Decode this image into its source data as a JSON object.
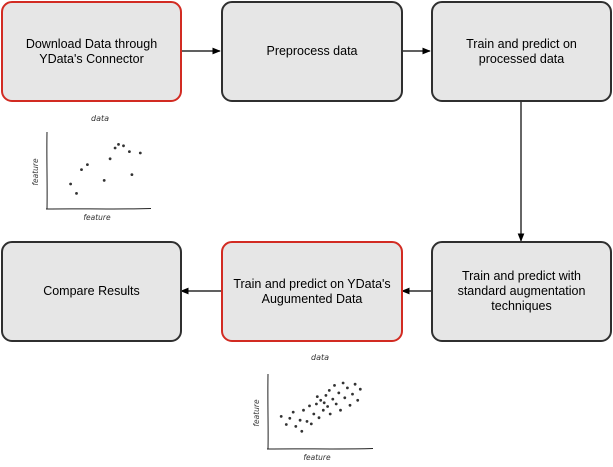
{
  "steps": {
    "download": "Download Data through\nYData's Connector",
    "preprocess": "Preprocess data",
    "train_processed": "Train and predict on\nprocessed data",
    "train_standard": "Train and predict with\nstandard augmentation\ntechniques",
    "train_ydata": "Train and predict on YData's\nAugumented Data",
    "compare": "Compare Results"
  },
  "colors": {
    "box_fill": "#e6e6e6",
    "box_border": "#2f2f2f",
    "highlight_border": "#d22b22"
  },
  "plot_original": {
    "title": "data",
    "xlabel": "feature",
    "ylabel": "feature",
    "points": [
      [
        1.5,
        2.5
      ],
      [
        2.2,
        1.2
      ],
      [
        2.8,
        4.5
      ],
      [
        3.5,
        5.2
      ],
      [
        5.5,
        3.0
      ],
      [
        6.2,
        6.0
      ],
      [
        6.8,
        7.5
      ],
      [
        7.2,
        8.0
      ],
      [
        7.8,
        7.8
      ],
      [
        8.5,
        7.0
      ],
      [
        8.8,
        3.8
      ],
      [
        9.8,
        6.8
      ]
    ]
  },
  "plot_augmented": {
    "title": "data",
    "xlabel": "feature",
    "ylabel": "feature",
    "points": [
      [
        0.6,
        3.8
      ],
      [
        1.2,
        2.5
      ],
      [
        1.6,
        3.5
      ],
      [
        2.0,
        4.5
      ],
      [
        2.3,
        2.2
      ],
      [
        2.8,
        3.2
      ],
      [
        3.2,
        4.8
      ],
      [
        3.6,
        3.0
      ],
      [
        3.9,
        5.5
      ],
      [
        4.1,
        2.6
      ],
      [
        4.4,
        4.2
      ],
      [
        4.7,
        5.8
      ],
      [
        5.0,
        3.6
      ],
      [
        5.2,
        6.4
      ],
      [
        5.5,
        4.8
      ],
      [
        5.8,
        7.2
      ],
      [
        6.0,
        5.4
      ],
      [
        6.2,
        8.0
      ],
      [
        6.3,
        4.2
      ],
      [
        6.6,
        6.6
      ],
      [
        6.8,
        8.8
      ],
      [
        7.0,
        5.8
      ],
      [
        7.3,
        7.6
      ],
      [
        7.5,
        4.8
      ],
      [
        7.8,
        9.2
      ],
      [
        8.0,
        6.8
      ],
      [
        8.3,
        8.4
      ],
      [
        8.6,
        5.6
      ],
      [
        8.9,
        7.4
      ],
      [
        9.2,
        9.0
      ],
      [
        9.5,
        6.4
      ],
      [
        9.8,
        8.2
      ],
      [
        3.0,
        1.4
      ],
      [
        5.6,
        6.0
      ],
      [
        4.8,
        7.0
      ]
    ]
  }
}
